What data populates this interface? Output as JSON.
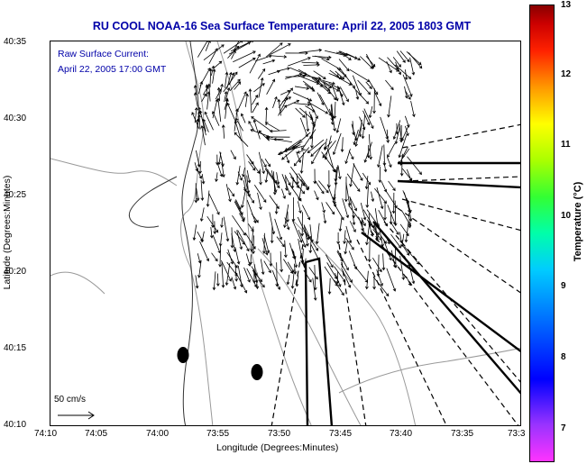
{
  "title": "RU COOL  NOAA-16  Sea Surface Temperature:  April 22, 2005 1803 GMT",
  "overlay": {
    "line1": "Raw Surface Current:",
    "line2": "April 22, 2005 17:00 GMT"
  },
  "scale_label": "50 cm/s",
  "axes": {
    "xlabel": "Longitude (Degrees:Minutes)",
    "ylabel": "Latitude (Degrees:Minutes)",
    "xticks": [
      "74:10",
      "74:05",
      "74:00",
      "73:55",
      "73:50",
      "73:45",
      "73:40",
      "73:35",
      "73:3"
    ],
    "yticks": [
      "40:35",
      "40:30",
      "40:25",
      "40:20",
      "40:15",
      "40:10"
    ]
  },
  "colorbar": {
    "title": "Temperature (°C)",
    "ticks": [
      "13",
      "12",
      "11",
      "10",
      "9",
      "8",
      "7"
    ]
  }
}
